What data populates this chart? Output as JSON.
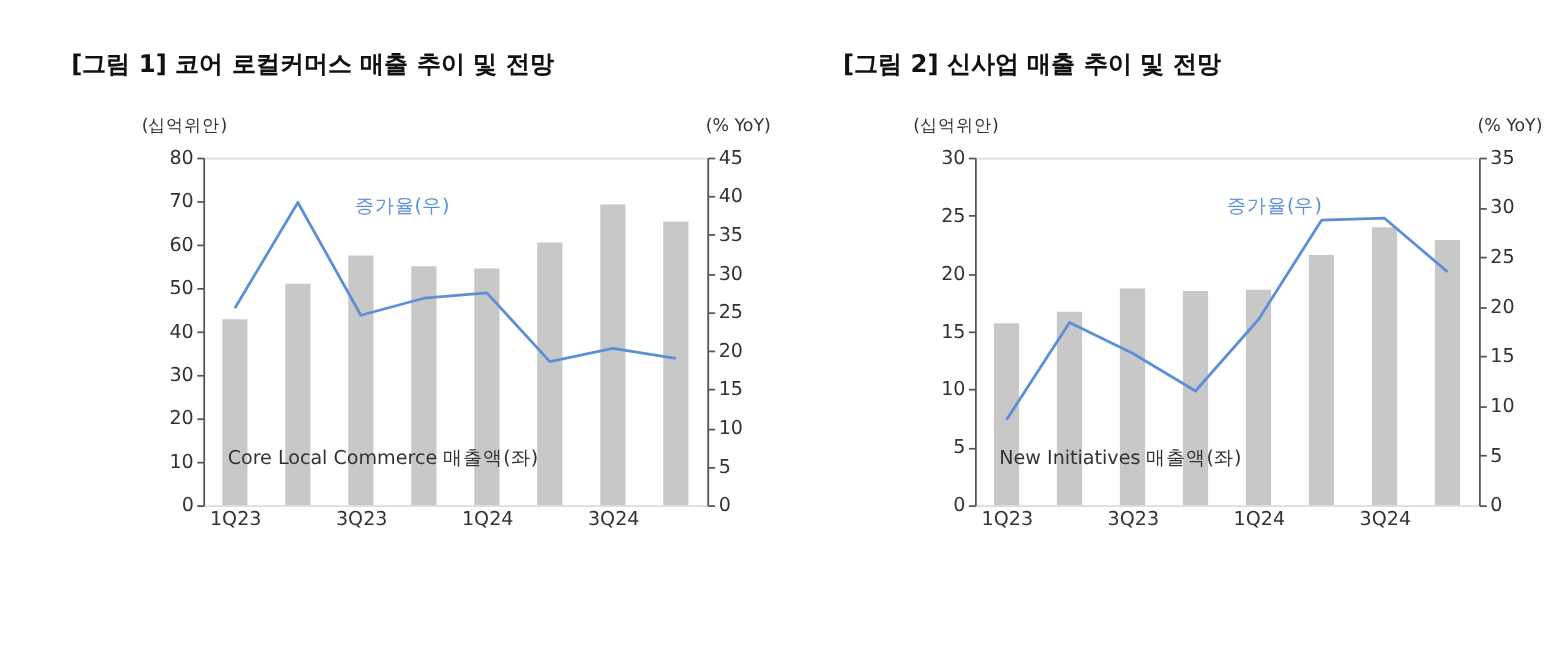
{
  "chart_data": [
    {
      "type": "bar",
      "title": "[그림 1] 코어 로컬커머스 매출 추이 및 전망",
      "ylabel": "(십억위안)",
      "y2label": "(% YoY)",
      "categories": [
        "1Q23",
        null,
        "3Q23",
        null,
        "1Q24",
        null,
        "3Q24",
        null
      ],
      "series": [
        {
          "name": "Core Local Commerce 매출액(좌)",
          "color": "#c8c8c8",
          "values": [
            42.8,
            51,
            57.5,
            55,
            54.5,
            60.5,
            69.2,
            65.3
          ]
        },
        {
          "name": "증가율(우)",
          "type": "line",
          "axis": "y2",
          "color": "#5b8fd6",
          "values": [
            25.5,
            39.2,
            24.6,
            26.8,
            27.5,
            18.6,
            20.3,
            19.0
          ]
        }
      ],
      "ylim": [
        0,
        80
      ],
      "yticks": [
        0,
        10,
        20,
        30,
        40,
        50,
        60,
        70,
        80
      ],
      "y2lim": [
        0,
        45
      ],
      "y2ticks": [
        0,
        5,
        10,
        15,
        20,
        25,
        30,
        35,
        40,
        45
      ],
      "grid": false
    },
    {
      "type": "bar",
      "title": "[그림 2] 신사업 매출 추이 및 전망",
      "ylabel": "(십억위안)",
      "y2label": "(% YoY)",
      "categories": [
        "1Q23",
        null,
        "3Q23",
        null,
        "1Q24",
        null,
        "3Q24",
        null
      ],
      "series": [
        {
          "name": "New Initiatives 매출액(좌)",
          "color": "#c8c8c8",
          "values": [
            15.7,
            16.7,
            18.7,
            18.5,
            18.6,
            21.6,
            24.0,
            22.9
          ]
        },
        {
          "name": "증가율(우)",
          "type": "line",
          "axis": "y2",
          "color": "#5b8fd6",
          "values": [
            8.6,
            18.4,
            15.3,
            11.5,
            18.7,
            28.7,
            28.9,
            23.5
          ]
        }
      ],
      "ylim": [
        0,
        30
      ],
      "yticks": [
        0,
        5,
        10,
        15,
        20,
        25,
        30
      ],
      "y2lim": [
        0,
        35
      ],
      "y2ticks": [
        0,
        5,
        10,
        15,
        20,
        25,
        30,
        35
      ],
      "grid": false
    }
  ]
}
